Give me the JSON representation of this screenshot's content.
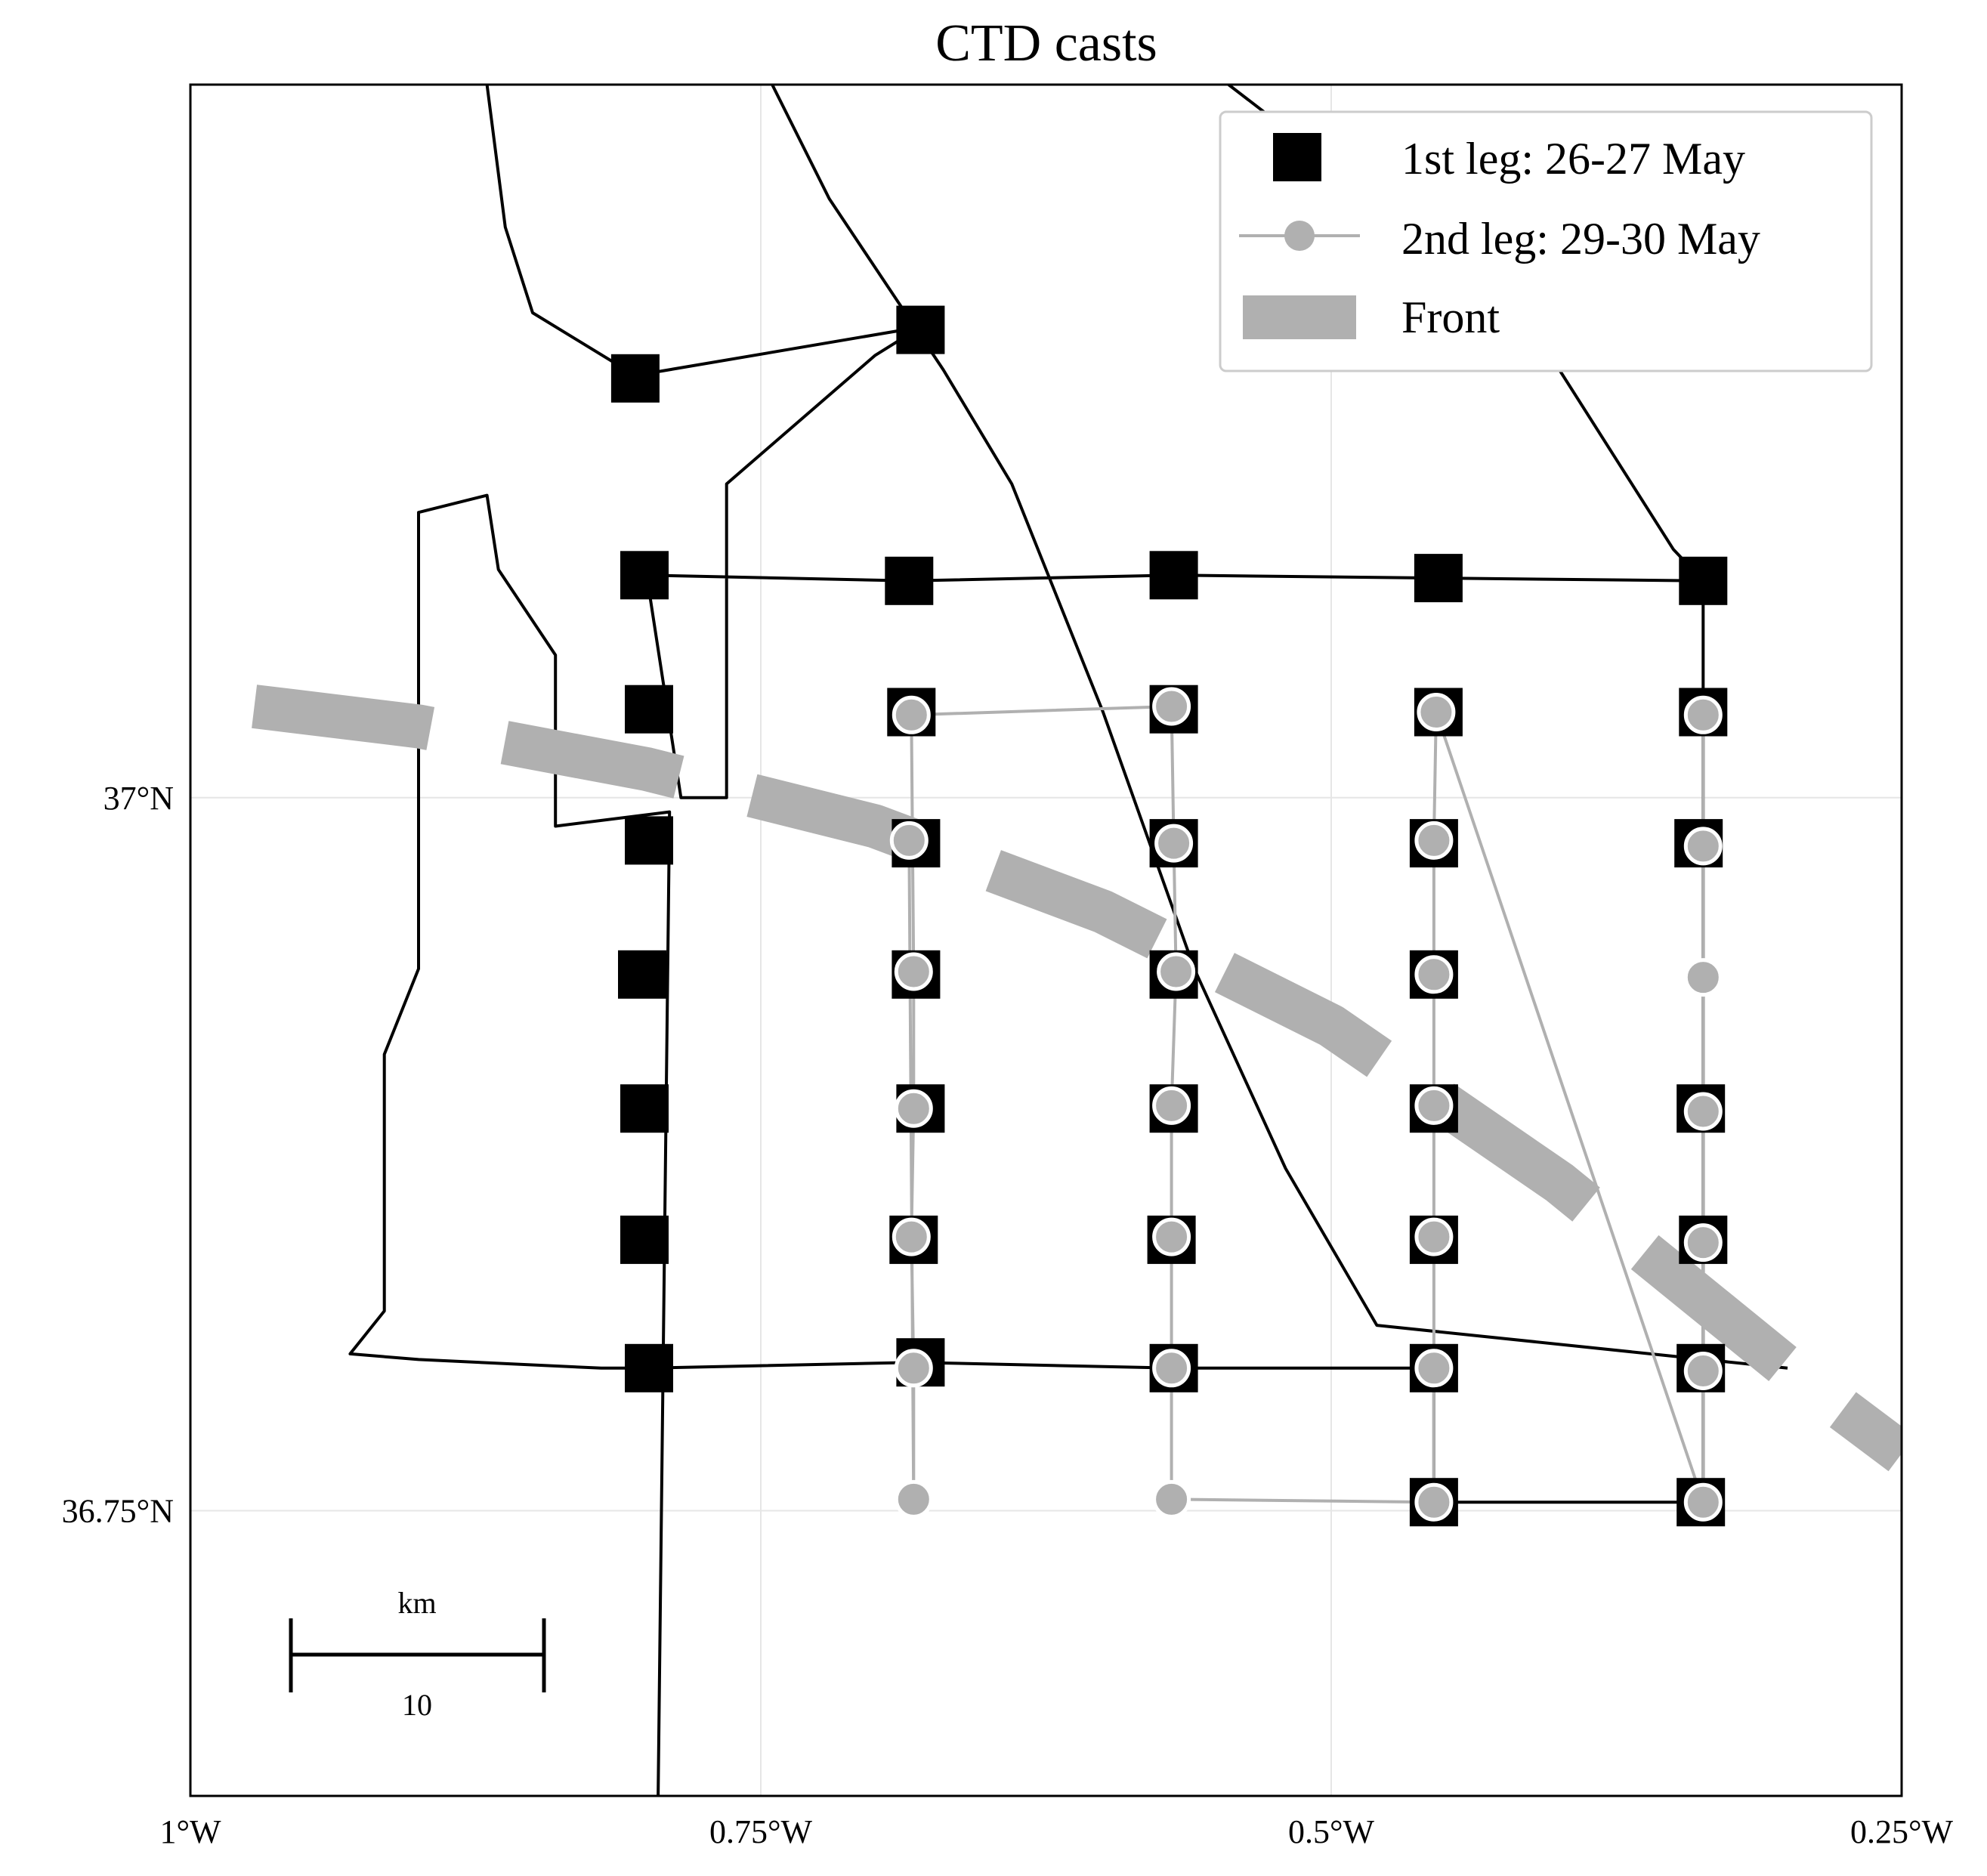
{
  "title": "CTD casts",
  "axes": {
    "x_ticks": [
      {
        "label": "1°W",
        "lon": -1.0
      },
      {
        "label": "0.75°W",
        "lon": -0.75
      },
      {
        "label": "0.5°W",
        "lon": -0.5
      },
      {
        "label": "0.25°W",
        "lon": -0.25
      }
    ],
    "y_ticks": [
      {
        "label": "37°N",
        "lat": 37.0
      },
      {
        "label": "36.75°N",
        "lat": 36.75
      }
    ],
    "lon_range": [
      -1.0,
      -0.25
    ],
    "lat_range": [
      36.65,
      37.25
    ],
    "grid": true
  },
  "legend": {
    "position": "top-right",
    "items": [
      {
        "label": "1st leg: 26-27 May",
        "marker": "square",
        "color": "#000000"
      },
      {
        "label": "2nd leg: 29-30 May",
        "marker": "circle",
        "color": "#b0b0b0"
      },
      {
        "label": "Front",
        "marker": "thick-dashed-line",
        "color": "#b0b0b0"
      }
    ]
  },
  "scale_bar": {
    "unit": "km",
    "length_label": "10",
    "length_km": 10
  },
  "colors": {
    "leg1": "#000000",
    "leg2": "#b0b0b0",
    "front": "#b0b0b0",
    "grid": "#e6e6e6"
  },
  "chart_data": {
    "type": "scatter",
    "title": "CTD casts",
    "series": [
      {
        "name": "1st leg: 26-27 May",
        "marker": "square",
        "points": [
          [
            -0.805,
            37.147
          ],
          [
            -0.68,
            37.164
          ],
          [
            -0.801,
            37.078
          ],
          [
            -0.685,
            37.076
          ],
          [
            -0.569,
            37.078
          ],
          [
            -0.453,
            37.077
          ],
          [
            -0.337,
            37.076
          ],
          [
            -0.799,
            37.031
          ],
          [
            -0.684,
            37.03
          ],
          [
            -0.569,
            37.031
          ],
          [
            -0.453,
            37.03
          ],
          [
            -0.337,
            37.03
          ],
          [
            -0.799,
            36.985
          ],
          [
            -0.682,
            36.984
          ],
          [
            -0.569,
            36.984
          ],
          [
            -0.455,
            36.984
          ],
          [
            -0.339,
            36.984
          ],
          [
            -0.802,
            36.938
          ],
          [
            -0.682,
            36.938
          ],
          [
            -0.569,
            36.938
          ],
          [
            -0.455,
            36.938
          ],
          [
            -0.801,
            36.891
          ],
          [
            -0.68,
            36.891
          ],
          [
            -0.569,
            36.891
          ],
          [
            -0.455,
            36.891
          ],
          [
            -0.338,
            36.891
          ],
          [
            -0.801,
            36.845
          ],
          [
            -0.683,
            36.845
          ],
          [
            -0.57,
            36.845
          ],
          [
            -0.455,
            36.845
          ],
          [
            -0.337,
            36.845
          ],
          [
            -0.799,
            36.8
          ],
          [
            -0.68,
            36.802
          ],
          [
            -0.569,
            36.8
          ],
          [
            -0.455,
            36.8
          ],
          [
            -0.338,
            36.8
          ],
          [
            -0.455,
            36.753
          ],
          [
            -0.338,
            36.753
          ]
        ]
      },
      {
        "name": "2nd leg: 29-30 May",
        "marker": "circle",
        "points": [
          [
            -0.684,
            37.029
          ],
          [
            -0.57,
            37.032
          ],
          [
            -0.454,
            37.03
          ],
          [
            -0.337,
            37.029
          ],
          [
            -0.685,
            36.985
          ],
          [
            -0.569,
            36.984
          ],
          [
            -0.455,
            36.985
          ],
          [
            -0.337,
            36.983
          ],
          [
            -0.683,
            36.939
          ],
          [
            -0.568,
            36.939
          ],
          [
            -0.455,
            36.938
          ],
          [
            -0.337,
            36.937
          ],
          [
            -0.683,
            36.891
          ],
          [
            -0.57,
            36.892
          ],
          [
            -0.455,
            36.892
          ],
          [
            -0.337,
            36.89
          ],
          [
            -0.684,
            36.846
          ],
          [
            -0.57,
            36.846
          ],
          [
            -0.455,
            36.846
          ],
          [
            -0.337,
            36.844
          ],
          [
            -0.683,
            36.8
          ],
          [
            -0.57,
            36.8
          ],
          [
            -0.455,
            36.8
          ],
          [
            -0.337,
            36.799
          ],
          [
            -0.683,
            36.754
          ],
          [
            -0.57,
            36.754
          ],
          [
            -0.455,
            36.753
          ],
          [
            -0.337,
            36.753
          ]
        ]
      }
    ],
    "front": [
      [
        -0.972,
        37.032
      ],
      [
        -0.9,
        37.025
      ],
      [
        -0.8,
        37.01
      ],
      [
        -0.7,
        36.99
      ],
      [
        -0.6,
        36.96
      ],
      [
        -0.5,
        36.92
      ],
      [
        -0.4,
        36.865
      ],
      [
        -0.3,
        36.8
      ],
      [
        -0.25,
        36.77
      ]
    ],
    "tracks": [
      {
        "leg": "1st leg: 26-27 May",
        "points": [
          [
            -0.87,
            37.25
          ],
          [
            -0.862,
            37.2
          ],
          [
            -0.85,
            37.17
          ],
          [
            -0.805,
            37.148
          ],
          [
            -0.68,
            37.165
          ],
          [
            -0.7,
            37.155
          ],
          [
            -0.765,
            37.11
          ],
          [
            -0.765,
            37.0
          ],
          [
            -0.785,
            37.0
          ],
          [
            -0.8,
            37.078
          ],
          [
            -0.685,
            37.076
          ],
          [
            -0.569,
            37.078
          ],
          [
            -0.453,
            37.077
          ],
          [
            -0.337,
            37.076
          ],
          [
            -0.337,
            36.753
          ],
          [
            -0.455,
            36.753
          ],
          [
            -0.455,
            36.8
          ],
          [
            -0.569,
            36.8
          ],
          [
            -0.683,
            36.802
          ],
          [
            -0.8,
            36.8
          ],
          [
            -0.82,
            36.8
          ],
          [
            -0.9,
            36.803
          ],
          [
            -0.93,
            36.805
          ],
          [
            -0.915,
            36.82
          ],
          [
            -0.915,
            36.91
          ],
          [
            -0.9,
            36.94
          ],
          [
            -0.9,
            37.1
          ],
          [
            -0.87,
            37.106
          ],
          [
            -0.865,
            37.08
          ],
          [
            -0.84,
            37.05
          ],
          [
            -0.84,
            36.99
          ],
          [
            -0.79,
            36.995
          ],
          [
            -0.795,
            36.65
          ]
        ]
      },
      {
        "leg": "1st leg: 26-27 May",
        "points": [
          [
            -0.745,
            37.25
          ],
          [
            -0.72,
            37.21
          ],
          [
            -0.67,
            37.15
          ],
          [
            -0.64,
            37.11
          ],
          [
            -0.6,
            37.03
          ],
          [
            -0.56,
            36.94
          ],
          [
            -0.52,
            36.87
          ],
          [
            -0.48,
            36.815
          ],
          [
            -0.3,
            36.8
          ]
        ]
      },
      {
        "leg": "1st leg: 26-27 May",
        "points": [
          [
            -0.545,
            37.25
          ],
          [
            -0.48,
            37.21
          ],
          [
            -0.4,
            37.15
          ],
          [
            -0.35,
            37.087
          ],
          [
            -0.337,
            37.076
          ]
        ]
      }
    ]
  }
}
